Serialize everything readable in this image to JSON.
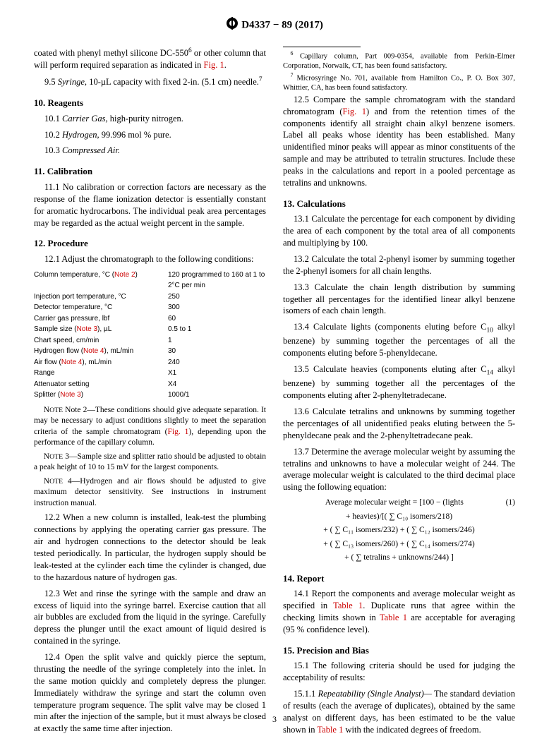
{
  "header": "D4337 − 89 (2017)",
  "intro1_pre": "coated with phenyl methyl silicone DC-550",
  "intro1_sup": "6",
  "intro1_mid": " or other column that will perform required separation as indicated in ",
  "intro1_link": "Fig. 1",
  "intro1_end": ".",
  "p95_a": "9.5 ",
  "p95_it": "Syringe,",
  "p95_b": " 10-µL capacity with fixed 2-in. (5.1 cm) needle.",
  "p95_sup": "7",
  "h10": "10.  Reagents",
  "p101_a": "10.1 ",
  "p101_it": "Carrier Gas,",
  "p101_b": " high-purity nitrogen.",
  "p102_a": "10.2 ",
  "p102_it": "Hydrogen,",
  "p102_b": " 99.996 mol % pure.",
  "p103_a": "10.3 ",
  "p103_it": "Compressed Air.",
  "h11": "11.  Calibration",
  "p111": "11.1 No calibration or correction factors are necessary as the response of the flame ionization detector is essentially constant for aromatic hydrocarbons. The individual peak area percentages may be regarded as the actual weight percent in the sample.",
  "h12": "12.  Procedure",
  "p121": "12.1 Adjust the chromatograph to the following conditions:",
  "cond": [
    {
      "l_a": "Column temperature, °C (",
      "l_link": "Note 2",
      "l_b": ")",
      "r": "120 programmed to 160 at 1 to 2°C per min"
    },
    {
      "l_a": "Injection port temperature, °C",
      "l_link": "",
      "l_b": "",
      "r": "250"
    },
    {
      "l_a": "Detector temperature, °C",
      "l_link": "",
      "l_b": "",
      "r": "300"
    },
    {
      "l_a": "Carrier gas pressure, lbf",
      "l_link": "",
      "l_b": "",
      "r": "60"
    },
    {
      "l_a": "Sample size (",
      "l_link": "Note 3",
      "l_b": "), µL",
      "r": "0.5 to 1"
    },
    {
      "l_a": "Chart speed, cm/min",
      "l_link": "",
      "l_b": "",
      "r": "1"
    },
    {
      "l_a": "Hydrogen flow (",
      "l_link": "Note 4",
      "l_b": "), mL/min",
      "r": "30"
    },
    {
      "l_a": "Air flow (",
      "l_link": "Note 4",
      "l_b": "), mL/min",
      "r": "240"
    },
    {
      "l_a": "Range",
      "l_link": "",
      "l_b": "",
      "r": "X1"
    },
    {
      "l_a": "Attenuator setting",
      "l_link": "",
      "l_b": "",
      "r": "X4"
    },
    {
      "l_a": "Splitter (",
      "l_link": "Note 3",
      "l_b": ")",
      "r": "1000/1"
    }
  ],
  "note2_a": "Note 2—These conditions should give adequate separation. It may be necessary to adjust conditions slightly to meet the separation criteria of the sample chromatogram (",
  "note2_link": "Fig. 1",
  "note2_b": "), depending upon the performance of the capillary column.",
  "note3": "Note 3—Sample size and splitter ratio should be adjusted to obtain a peak height of 10 to 15 mV for the largest components.",
  "note4": "Note 4—Hydrogen and air flows should be adjusted to give maximum detector sensitivity. See instructions in instrument instruction manual.",
  "p122": "12.2 When a new column is installed, leak-test the plumbing connections by applying the operating carrier gas pressure. The air and hydrogen connections to the detector should be leak tested periodically. In particular, the hydrogen supply should be leak-tested at the cylinder each time the cylinder is changed, due to the hazardous nature of hydrogen gas.",
  "p123": "12.3 Wet and rinse the syringe with the sample and draw an excess of liquid into the syringe barrel. Exercise caution that all air bubbles are excluded from the liquid in the syringe. Carefully depress the plunger until the exact amount of liquid desired is contained in the syringe.",
  "p124": "12.4 Open the split valve and quickly pierce the septum, thrusting the needle of the syringe completely into the inlet. In the same motion quickly and completely depress the plunger. Immediately withdraw the syringe and start the column oven temperature program sequence. The split valve may be closed 1 min after the injection of the sample, but it must always be closed at exactly the same time after injection.",
  "p125_a": "12.5 Compare the sample chromatogram with the standard chromatogram (",
  "p125_link": "Fig. 1",
  "p125_b": ") and from the retention times of the components identify all straight chain alkyl benzene isomers. Label all peaks whose identity has been established. Many unidentified minor peaks will appear as minor constituents of the sample and may be attributed to tetralin structures. Include these peaks in the calculations and report in a pooled percentage as tetralins and unknowns.",
  "h13": "13.  Calculations",
  "p131": "13.1 Calculate the percentage for each component by dividing the area of each component by the total area of all components and multiplying by 100.",
  "p132": "13.2 Calculate the total 2-phenyl isomer by summing together the 2-phenyl isomers for all chain lengths.",
  "p133": "13.3 Calculate the chain length distribution by summing together all percentages for the identified linear alkyl benzene isomers of each chain length.",
  "p134_a": "13.4 Calculate lights (components eluting before C",
  "p134_sub": "10",
  "p134_b": " alkyl benzene) by summing together the percentages of all the components eluting before 5-phenyldecane.",
  "p135_a": "13.5 Calculate heavies (components eluting after C",
  "p135_sub": "14",
  "p135_b": " alkyl benzene) by summing together all the percentages of the components eluting after 2-phenyltetradecane.",
  "p136": "13.6 Calculate tetralins and unknowns by summing together the percentages of all unidentified peaks eluting between the 5-phenyldecane peak and the 2-phenyltetradecane peak.",
  "p137": "13.7 Determine the average molecular weight by assuming the tetralins and unknowns to have a molecular weight of 244. The average molecular weight is calculated to the third decimal place using the following equation:",
  "eq1_a": "Average molecular weight = [100  −  (lights",
  "eq1_num": "(1)",
  "eq2": "+ heavies)/[( ∑ C₁₀ isomers/218)",
  "eq3": "+ ( ∑ C₁₁  isomers/232) + ( ∑ C₁₂  isomers/246)",
  "eq4": "+ ( ∑ C₁₃  isomers/260) + ( ∑ C₁₄ isomers/274)",
  "eq5": "+  ( ∑ tetralins + unknowns/244) ]",
  "h14": "14.  Report",
  "p141_a": "14.1 Report the components and average molecular weight as specified in ",
  "p141_link1": "Table 1",
  "p141_b": ". Duplicate runs that agree within the checking limits shown in ",
  "p141_link2": "Table 1",
  "p141_c": " are acceptable for averaging (95 % confidence level).",
  "h15": "15.  Precision and Bias",
  "p151": "15.1 The following criteria should be used for judging the acceptability of results:",
  "p1511_a": "15.1.1 ",
  "p1511_it": "Repeatability (Single Analyst)—",
  "p1511_b": " The standard deviation of results (each the average of duplicates), obtained by the same analyst on different days, has been estimated to be the value shown in ",
  "p1511_link": "Table 1",
  "p1511_c": " with the indicated degrees of freedom.",
  "fn6_sup": "6",
  "fn6": " Capillary column, Part 009-0354, available from Perkin-Elmer Corporation, Norwalk, CT, has been found satisfactory.",
  "fn7_sup": "7",
  "fn7": " Microsyringe No. 701, available from Hamilton Co., P. O. Box 307, Whittier, CA, has been found satisfactory.",
  "pagenum": "3"
}
